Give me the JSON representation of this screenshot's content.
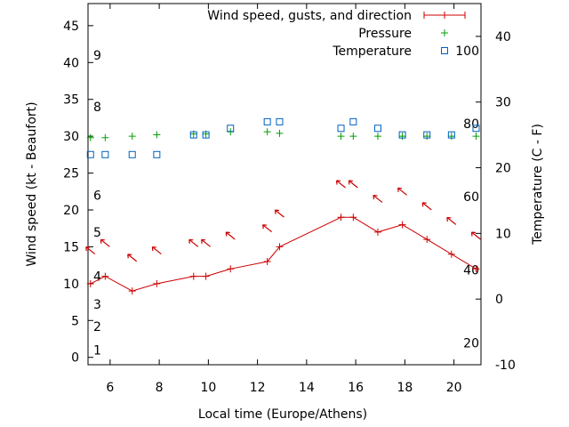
{
  "chart_data": {
    "type": "line",
    "xlabel": "Local time (Europe/Athens)",
    "ylabel_left": "Wind speed (kt - Beaufort)",
    "ylabel_right": "Temperature (C - F)",
    "xlim": [
      5.1,
      21.1
    ],
    "x_ticks": [
      6,
      8,
      10,
      12,
      14,
      16,
      18,
      20
    ],
    "ylim_left": [
      -1,
      48
    ],
    "y_ticks_left": [
      0,
      5,
      10,
      15,
      20,
      25,
      30,
      35,
      40,
      45
    ],
    "ylim_right": [
      -10,
      45
    ],
    "y_ticks_right": [
      -10,
      0,
      10,
      20,
      30,
      40
    ],
    "beaufort_labels": [
      {
        "label": "1",
        "kt": 1
      },
      {
        "label": "2",
        "kt": 4.2
      },
      {
        "label": "3",
        "kt": 7.2
      },
      {
        "label": "4",
        "kt": 11
      },
      {
        "label": "5",
        "kt": 17
      },
      {
        "label": "6",
        "kt": 22
      },
      {
        "label": "8",
        "kt": 34
      },
      {
        "label": "9",
        "kt": 41
      }
    ],
    "fahrenheit_labels": [
      {
        "label": "20",
        "celsius": -6.7
      },
      {
        "label": "40",
        "celsius": 4.4
      },
      {
        "label": "60",
        "celsius": 15.6
      },
      {
        "label": "80",
        "celsius": 26.7
      },
      {
        "label": "100",
        "celsius": 37.8
      }
    ],
    "legend": {
      "position": "top-right",
      "entries": [
        "Wind speed, gusts, and direction",
        "Pressure",
        "Temperature"
      ]
    },
    "series": [
      {
        "name": "Wind speed, gusts, and direction",
        "color": "#cc0000",
        "x": [
          5.2,
          5.8,
          6.9,
          7.9,
          9.4,
          9.9,
          10.9,
          12.4,
          12.9,
          15.4,
          15.9,
          16.9,
          17.9,
          18.9,
          19.9,
          20.9
        ],
        "values": [
          10,
          11,
          9,
          10,
          11,
          11,
          12,
          13,
          15,
          19,
          19,
          17,
          18,
          16,
          14,
          12
        ],
        "direction_arrows": [
          {
            "x": 5.2,
            "kt": 14.5
          },
          {
            "x": 5.8,
            "kt": 15.5
          },
          {
            "x": 6.9,
            "kt": 13.5
          },
          {
            "x": 7.9,
            "kt": 14.5
          },
          {
            "x": 9.4,
            "kt": 15.5
          },
          {
            "x": 9.9,
            "kt": 15.5
          },
          {
            "x": 10.9,
            "kt": 16.5
          },
          {
            "x": 12.4,
            "kt": 17.5
          },
          {
            "x": 12.9,
            "kt": 19.5
          },
          {
            "x": 15.4,
            "kt": 23.5
          },
          {
            "x": 15.9,
            "kt": 23.5
          },
          {
            "x": 16.9,
            "kt": 21.5
          },
          {
            "x": 17.9,
            "kt": 22.5
          },
          {
            "x": 18.9,
            "kt": 20.5
          },
          {
            "x": 19.9,
            "kt": 18.5
          },
          {
            "x": 20.9,
            "kt": 16.5
          }
        ]
      },
      {
        "name": "Pressure",
        "color": "#00a000",
        "x": [
          5.2,
          5.8,
          6.9,
          7.9,
          9.4,
          9.9,
          10.9,
          12.4,
          12.9,
          15.4,
          15.9,
          16.9,
          17.9,
          18.9,
          19.9,
          20.9
        ],
        "values_on_left_axis": [
          29.8,
          29.8,
          30.0,
          30.2,
          30.3,
          30.3,
          30.6,
          30.6,
          30.4,
          30.0,
          30.0,
          30.0,
          30.0,
          30.0,
          30.0,
          30.0
        ]
      },
      {
        "name": "Temperature",
        "color": "#0060c0",
        "x": [
          5.2,
          5.8,
          6.9,
          7.9,
          9.4,
          9.9,
          10.9,
          12.4,
          12.9,
          15.4,
          15.9,
          16.9,
          17.9,
          18.9,
          19.9,
          20.9
        ],
        "values_celsius": [
          22,
          22,
          22,
          22,
          25,
          25,
          26,
          27,
          27,
          26,
          27,
          26,
          25,
          25,
          25,
          26
        ]
      }
    ]
  }
}
